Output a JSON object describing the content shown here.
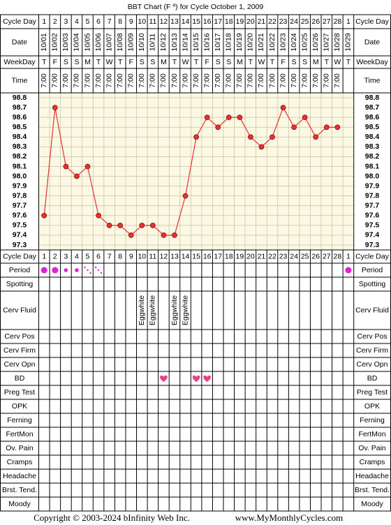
{
  "title": "BBT Chart (F º) for Cycle October 1, 2009",
  "chart_data": {
    "type": "line",
    "categories": [
      1,
      2,
      3,
      4,
      5,
      6,
      7,
      8,
      9,
      10,
      11,
      12,
      13,
      14,
      15,
      16,
      17,
      18,
      19,
      20,
      21,
      22,
      23,
      24,
      25,
      26,
      27,
      28,
      1
    ],
    "dates": [
      "10/01",
      "10/02",
      "10/03",
      "10/04",
      "10/05",
      "10/06",
      "10/07",
      "10/08",
      "10/09",
      "10/10",
      "10/11",
      "10/12",
      "10/13",
      "10/14",
      "10/15",
      "10/16",
      "10/17",
      "10/18",
      "10/19",
      "10/20",
      "10/21",
      "10/22",
      "10/23",
      "10/24",
      "10/25",
      "10/26",
      "10/27",
      "10/28",
      "10/29"
    ],
    "weekdays": [
      "T",
      "F",
      "S",
      "S",
      "M",
      "T",
      "W",
      "T",
      "F",
      "S",
      "S",
      "M",
      "T",
      "W",
      "T",
      "F",
      "S",
      "S",
      "M",
      "T",
      "W",
      "T",
      "F",
      "S",
      "S",
      "M",
      "T",
      "W",
      "T"
    ],
    "times": [
      "7:00",
      "7:00",
      "7:00",
      "7:00",
      "7:00",
      "7:00",
      "7:00",
      "7:00",
      "7:00",
      "7:00",
      "7:00",
      "7:00",
      "7:00",
      "7:00",
      "7:00",
      "7:00",
      "7:00",
      "7:00",
      "7:00",
      "7:00",
      "7:00",
      "7:00",
      "7:00",
      "7:00",
      "7:00",
      "7:00",
      "7:00",
      "7:00",
      null
    ],
    "values": [
      97.6,
      98.7,
      98.1,
      98.0,
      98.1,
      97.6,
      97.5,
      97.5,
      97.4,
      97.5,
      97.5,
      97.4,
      97.4,
      97.8,
      98.4,
      98.6,
      98.5,
      98.6,
      98.6,
      98.4,
      98.3,
      98.4,
      98.7,
      98.5,
      98.6,
      98.4,
      98.5,
      98.5,
      null
    ],
    "color": "#e83030",
    "ylim": [
      97.25,
      98.85
    ],
    "yticks": [
      98.8,
      98.7,
      98.6,
      98.5,
      98.4,
      98.3,
      98.2,
      98.1,
      {
        "value": 98.0,
        "label": "98.0"
      },
      97.9,
      97.8,
      97.7,
      97.6,
      97.5,
      97.4,
      97.3
    ],
    "grid": true
  },
  "header_labels": [
    "Cycle Day",
    "Date",
    "WeekDay",
    "Time"
  ],
  "chart_row_label": "Cycle Day",
  "tracking": [
    {
      "label": "Period",
      "values": [
        3,
        3,
        2,
        2,
        1,
        1,
        null,
        null,
        null,
        null,
        null,
        null,
        null,
        null,
        null,
        null,
        null,
        null,
        null,
        null,
        null,
        null,
        null,
        null,
        null,
        null,
        null,
        null,
        3
      ]
    },
    {
      "label": "Spotting"
    },
    {
      "label": "Cerv Fluid",
      "values": [
        null,
        null,
        null,
        null,
        null,
        null,
        null,
        null,
        null,
        "Eggwhite",
        "Eggwhite",
        null,
        "Eggwhite",
        "Eggwhite",
        null,
        null,
        null,
        null,
        null,
        null,
        null,
        null,
        null,
        null,
        null,
        null,
        null,
        null,
        null
      ]
    },
    {
      "label": "Cerv Pos"
    },
    {
      "label": "Cerv Firm"
    },
    {
      "label": "Cerv Opn"
    },
    {
      "label": "BD",
      "values": [
        null,
        null,
        null,
        null,
        null,
        null,
        null,
        null,
        null,
        null,
        null,
        1,
        null,
        null,
        1,
        1,
        null,
        null,
        null,
        null,
        null,
        null,
        null,
        null,
        null,
        null,
        null,
        null,
        null
      ]
    },
    {
      "label": "Preg Test"
    },
    {
      "label": "OPK"
    },
    {
      "label": "Ferning"
    },
    {
      "label": "FertMon"
    },
    {
      "label": "Ov. Pain"
    },
    {
      "label": "Cramps"
    },
    {
      "label": "Headache"
    },
    {
      "label": "Brst. Tend."
    },
    {
      "label": "Moody"
    }
  ],
  "footer": {
    "copyright": "Copyright © 2003-2024 bInfinity Web Inc.",
    "site": "www.MyMonthlyCycles.com"
  }
}
